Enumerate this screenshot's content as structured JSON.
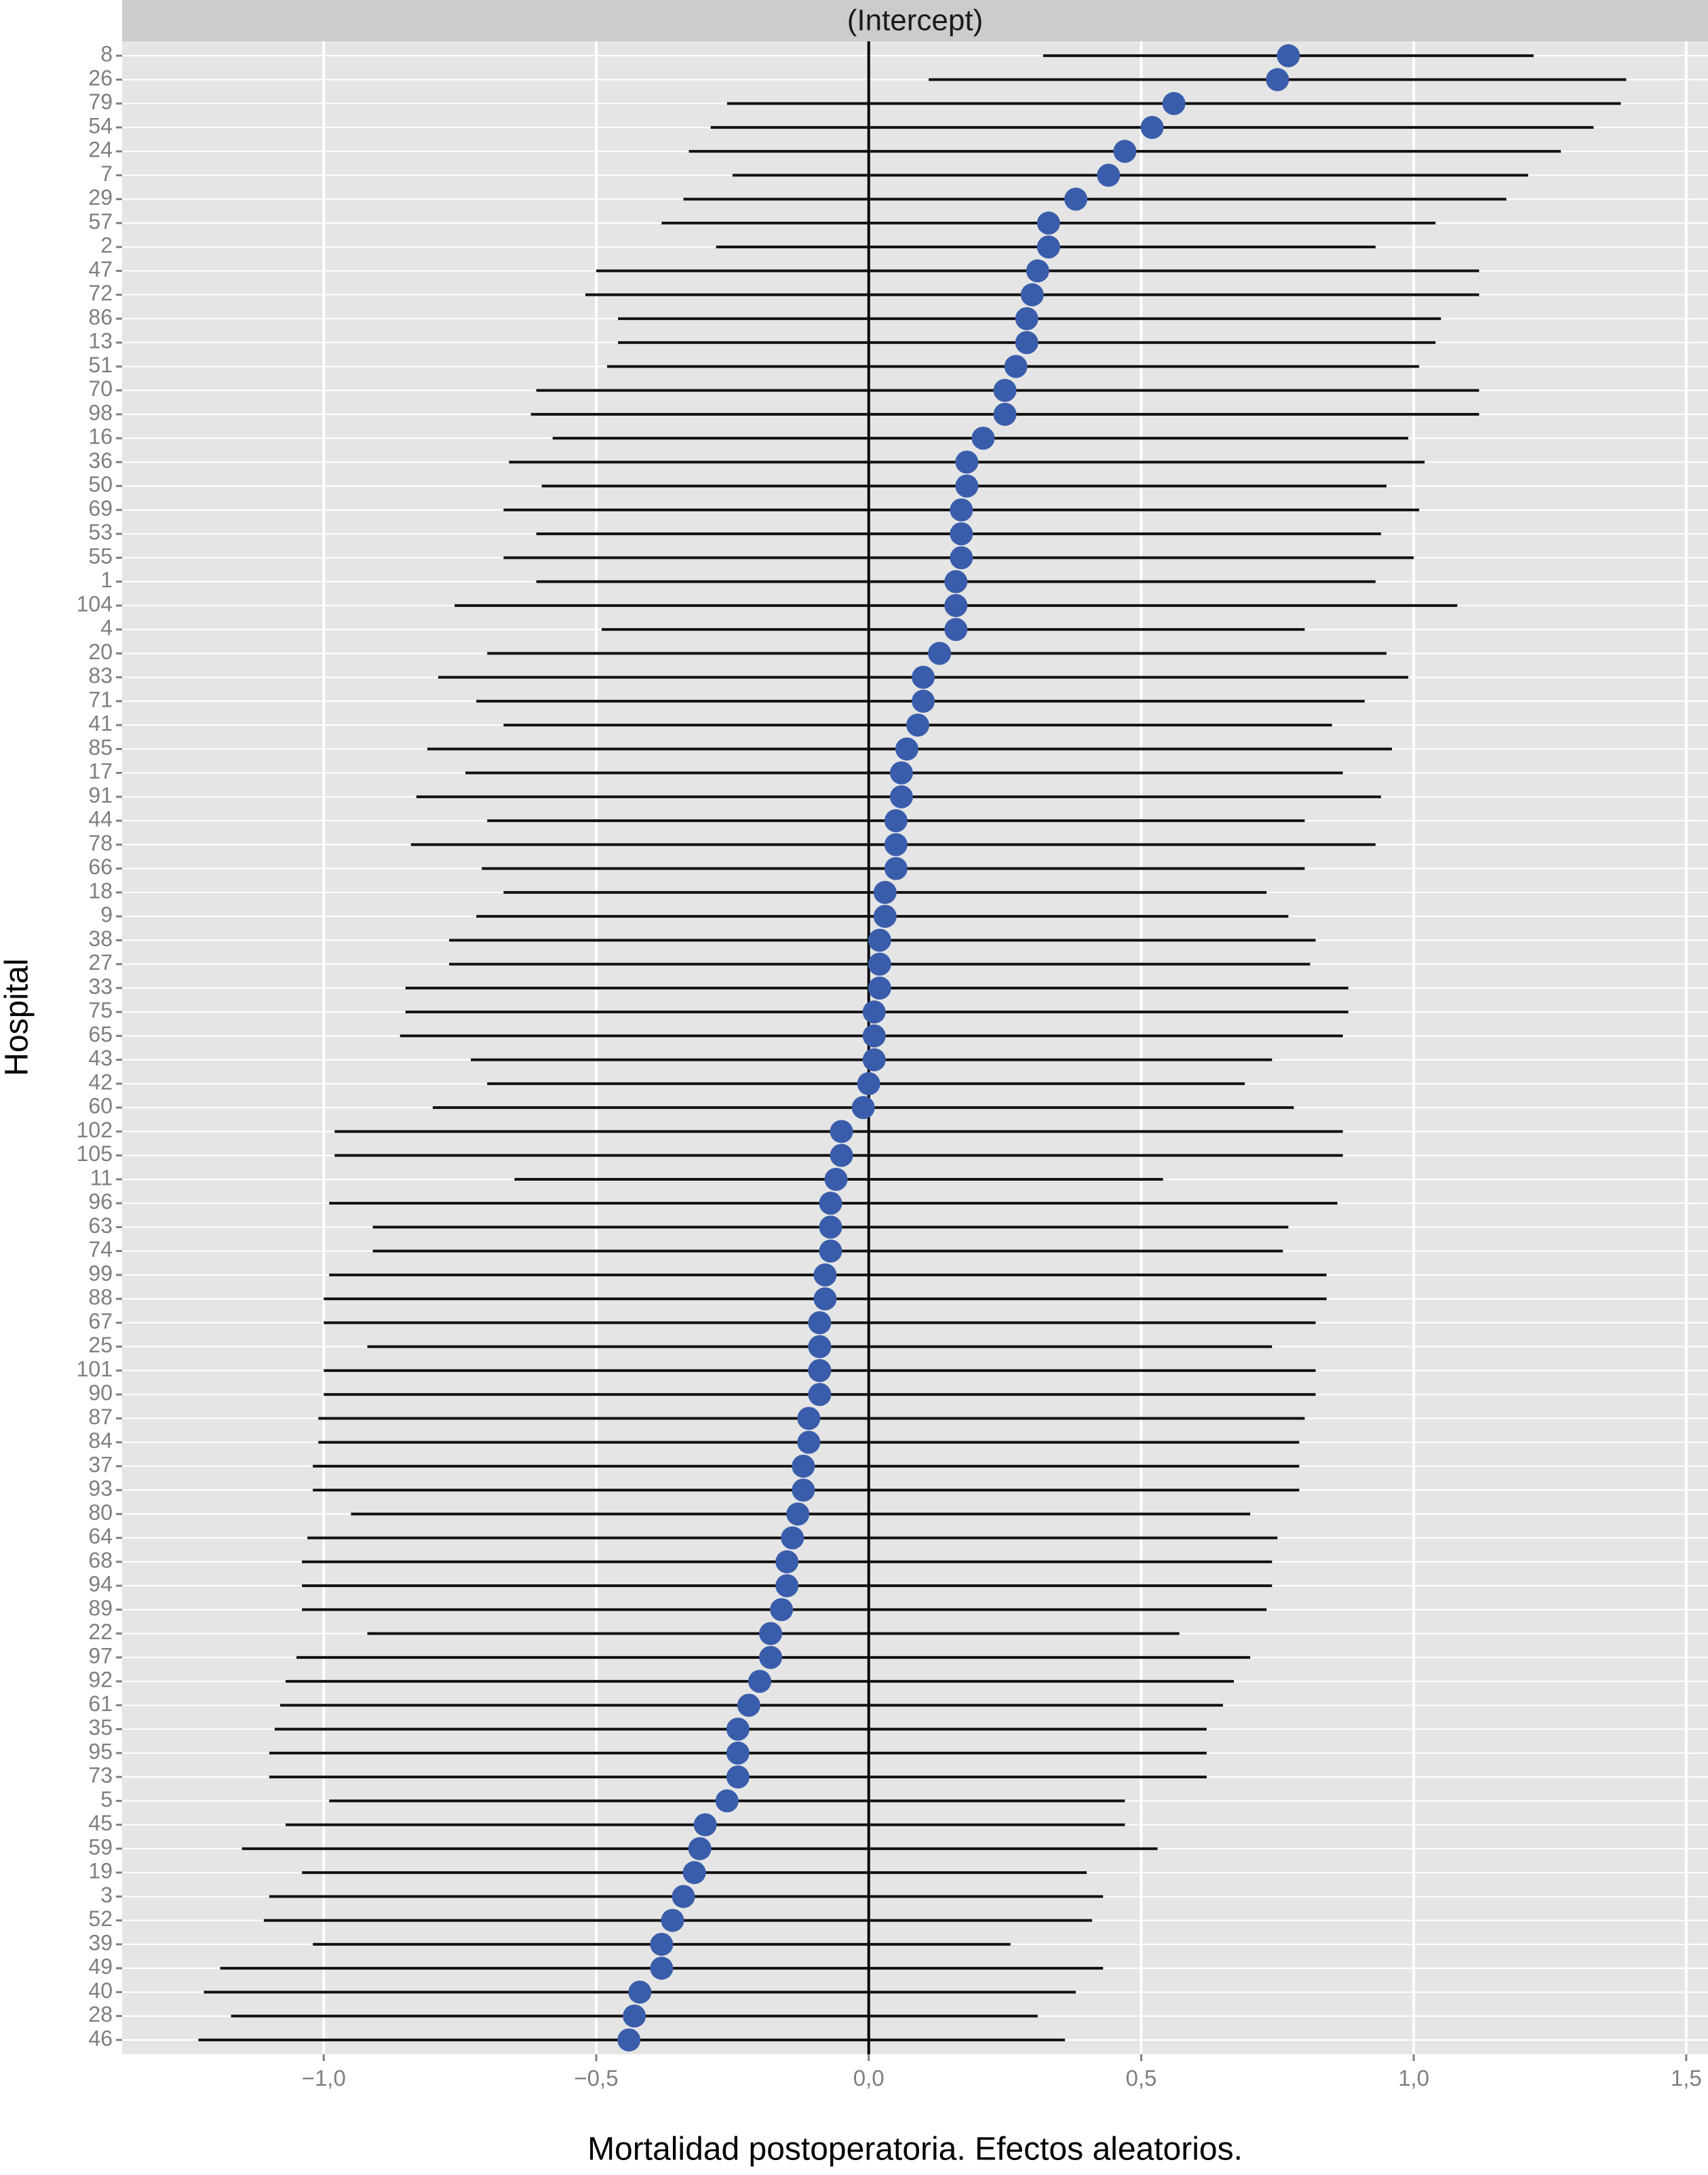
{
  "chart_data": {
    "type": "caterpillar",
    "strip": "(Intercept)",
    "xlabel": "Mortalidad postoperatoria. Efectos aleatorios.",
    "ylabel": "Hospital",
    "categories": [
      "8",
      "26",
      "79",
      "54",
      "24",
      "7",
      "29",
      "57",
      "2",
      "47",
      "72",
      "86",
      "13",
      "51",
      "70",
      "98",
      "16",
      "36",
      "50",
      "69",
      "53",
      "55",
      "1",
      "104",
      "4",
      "20",
      "83",
      "71",
      "41",
      "85",
      "17",
      "91",
      "44",
      "78",
      "66",
      "18",
      "9",
      "38",
      "27",
      "33",
      "75",
      "65",
      "43",
      "42",
      "60",
      "102",
      "105",
      "11",
      "96",
      "63",
      "74",
      "99",
      "88",
      "67",
      "25",
      "101",
      "90",
      "87",
      "84",
      "37",
      "93",
      "80",
      "64",
      "68",
      "94",
      "89",
      "22",
      "97",
      "92",
      "61",
      "35",
      "95",
      "73",
      "5",
      "45",
      "59",
      "19",
      "3",
      "52",
      "39",
      "49",
      "40",
      "28",
      "46"
    ],
    "values": [
      0.77,
      0.75,
      0.56,
      0.52,
      0.47,
      0.44,
      0.38,
      0.33,
      0.33,
      0.31,
      0.3,
      0.29,
      0.29,
      0.27,
      0.25,
      0.25,
      0.21,
      0.18,
      0.18,
      0.17,
      0.17,
      0.17,
      0.16,
      0.16,
      0.16,
      0.13,
      0.1,
      0.1,
      0.09,
      0.07,
      0.06,
      0.06,
      0.05,
      0.05,
      0.05,
      0.03,
      0.03,
      0.02,
      0.02,
      0.02,
      0.01,
      0.01,
      0.01,
      0,
      -0.01,
      -0.05,
      -0.05,
      -0.06,
      -0.07,
      -0.07,
      -0.07,
      -0.08,
      -0.08,
      -0.09,
      -0.09,
      -0.09,
      -0.09,
      -0.11,
      -0.11,
      -0.12,
      -0.12,
      -0.13,
      -0.14,
      -0.15,
      -0.15,
      -0.16,
      -0.18,
      -0.18,
      -0.2,
      -0.22,
      -0.24,
      -0.24,
      -0.24,
      -0.26,
      -0.3,
      -0.31,
      -0.32,
      -0.34,
      -0.36,
      -0.38,
      -0.38,
      -0.42,
      -0.43,
      -0.44
    ],
    "lower": [
      0.32,
      0.11,
      -0.26,
      -0.29,
      -0.33,
      -0.25,
      -0.34,
      -0.38,
      -0.28,
      -0.5,
      -0.52,
      -0.46,
      -0.46,
      -0.48,
      -0.61,
      -0.62,
      -0.58,
      -0.66,
      -0.6,
      -0.67,
      -0.61,
      -0.67,
      -0.61,
      -0.76,
      -0.49,
      -0.7,
      -0.79,
      -0.72,
      -0.67,
      -0.81,
      -0.74,
      -0.83,
      -0.7,
      -0.84,
      -0.71,
      -0.67,
      -0.72,
      -0.77,
      -0.77,
      -0.85,
      -0.85,
      -0.86,
      -0.73,
      -0.7,
      -0.8,
      -0.98,
      -0.98,
      -0.65,
      -0.99,
      -0.91,
      -0.91,
      -0.99,
      -1.0,
      -1.0,
      -0.92,
      -1.0,
      -1.0,
      -1.01,
      -1.01,
      -1.02,
      -1.02,
      -0.95,
      -1.03,
      -1.04,
      -1.04,
      -1.04,
      -0.92,
      -1.05,
      -1.07,
      -1.08,
      -1.09,
      -1.1,
      -1.1,
      -0.99,
      -1.07,
      -1.15,
      -1.04,
      -1.1,
      -1.11,
      -1.02,
      -1.19,
      -1.22,
      -1.17,
      -1.23
    ],
    "upper": [
      1.22,
      1.39,
      1.38,
      1.33,
      1.27,
      1.21,
      1.17,
      1.04,
      0.93,
      1.12,
      1.12,
      1.05,
      1.04,
      1.01,
      1.12,
      1.12,
      0.99,
      1.02,
      0.95,
      1.01,
      0.94,
      1.0,
      0.93,
      1.08,
      0.8,
      0.95,
      0.99,
      0.91,
      0.85,
      0.96,
      0.87,
      0.94,
      0.8,
      0.93,
      0.8,
      0.73,
      0.77,
      0.82,
      0.81,
      0.88,
      0.88,
      0.87,
      0.74,
      0.69,
      0.78,
      0.87,
      0.87,
      0.54,
      0.86,
      0.77,
      0.76,
      0.84,
      0.84,
      0.82,
      0.74,
      0.82,
      0.82,
      0.8,
      0.79,
      0.79,
      0.79,
      0.7,
      0.75,
      0.74,
      0.74,
      0.73,
      0.57,
      0.7,
      0.67,
      0.65,
      0.62,
      0.62,
      0.62,
      0.47,
      0.47,
      0.53,
      0.4,
      0.43,
      0.41,
      0.26,
      0.43,
      0.38,
      0.31,
      0.36
    ],
    "color": "#3a5dab",
    "errorbar_color": "#111111",
    "reference_line": 0,
    "xlim": [
      -1.37,
      1.54
    ],
    "xticks": [
      {
        "value": -1.0,
        "label": "−1,0"
      },
      {
        "value": -0.5,
        "label": "−0,5"
      },
      {
        "value": 0,
        "label": "0,0"
      },
      {
        "value": 0.5,
        "label": "0,5"
      },
      {
        "value": 1.0,
        "label": "1,0"
      },
      {
        "value": 1.5,
        "label": "1,5"
      }
    ],
    "grid": true
  }
}
